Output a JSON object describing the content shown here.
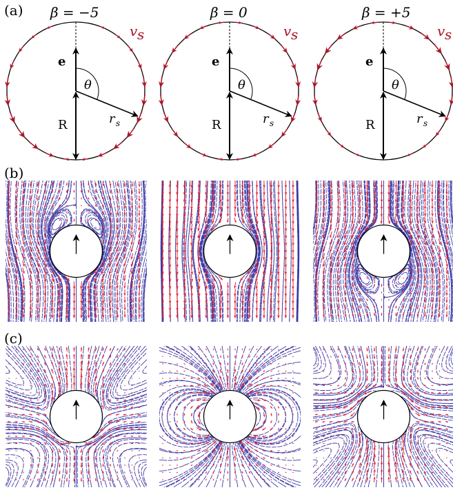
{
  "panels": {
    "a": {
      "label": "(a)"
    },
    "b": {
      "label": "(b)"
    },
    "c": {
      "label": "(c)"
    }
  },
  "columns": [
    {
      "beta_label": "β = −5",
      "beta": -5
    },
    {
      "beta_label": "β = 0",
      "beta": 0
    },
    {
      "beta_label": "β = +5",
      "beta": 5
    }
  ],
  "symbols": {
    "e": "e",
    "theta": "θ",
    "R": "R",
    "r_s": "r",
    "r_s_sub": "s",
    "v_s": "v",
    "v_s_sub": "s"
  },
  "colors": {
    "slip_arrow": "#a8172a",
    "streamline": "#3a3aa8",
    "velocity_arrow": "#e8202a",
    "outline": "#000000"
  }
}
